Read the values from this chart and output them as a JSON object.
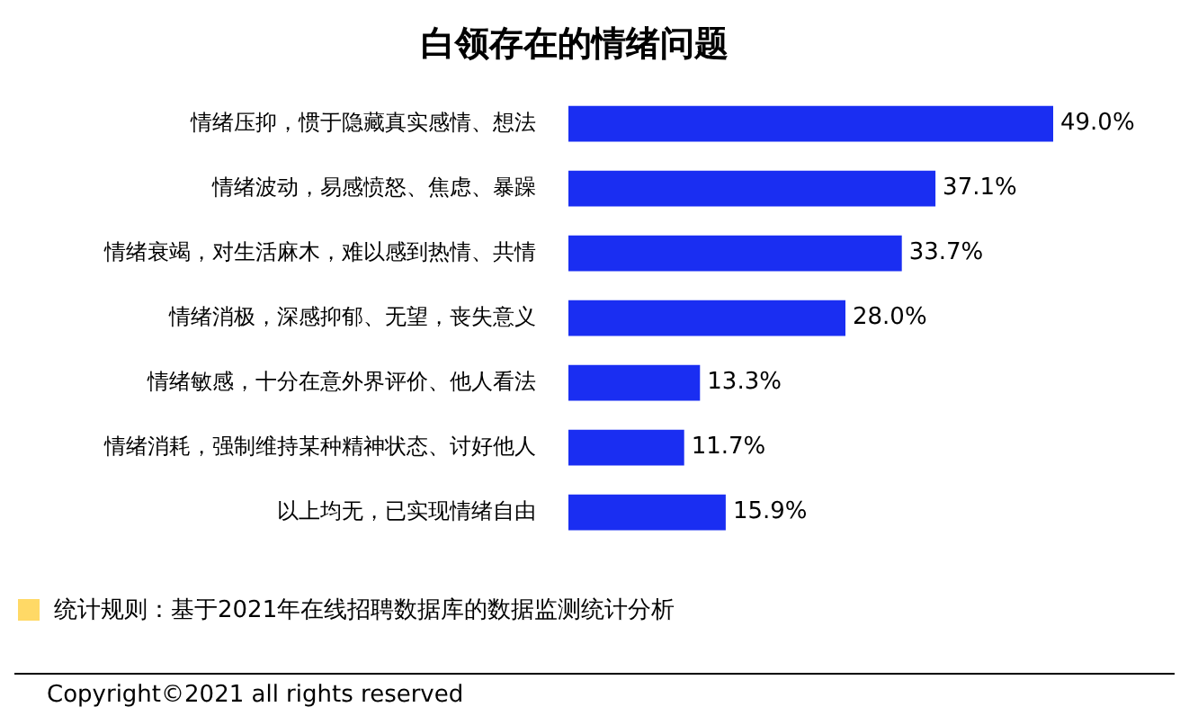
{
  "chart_data": {
    "type": "bar",
    "orientation": "horizontal",
    "title": "白领存在的情绪问题",
    "categories": [
      "情绪压抑，惯于隐藏真实感情、想法",
      "情绪波动，易感愤怒、焦虑、暴躁",
      "情绪衰竭，对生活麻木，难以感到热情、共情",
      "情绪消极，深感抑郁、无望，丧失意义",
      "情绪敏感，十分在意外界评价、他人看法",
      "情绪消耗，强制维持某种精神状态、讨好他人",
      "以上均无，已实现情绪自由"
    ],
    "values": [
      49.0,
      37.1,
      33.7,
      28.0,
      13.3,
      11.7,
      15.9
    ],
    "value_labels": [
      "49.0%",
      "37.1%",
      "33.7%",
      "28.0%",
      "13.3%",
      "11.7%",
      "15.9%"
    ],
    "color": "#1a2ef2",
    "legend": false,
    "annotations": [
      "统计规则：基于2021年在线招聘数据库的数据监测统计分析",
      "Copyright©2021 all rights reserved"
    ]
  }
}
